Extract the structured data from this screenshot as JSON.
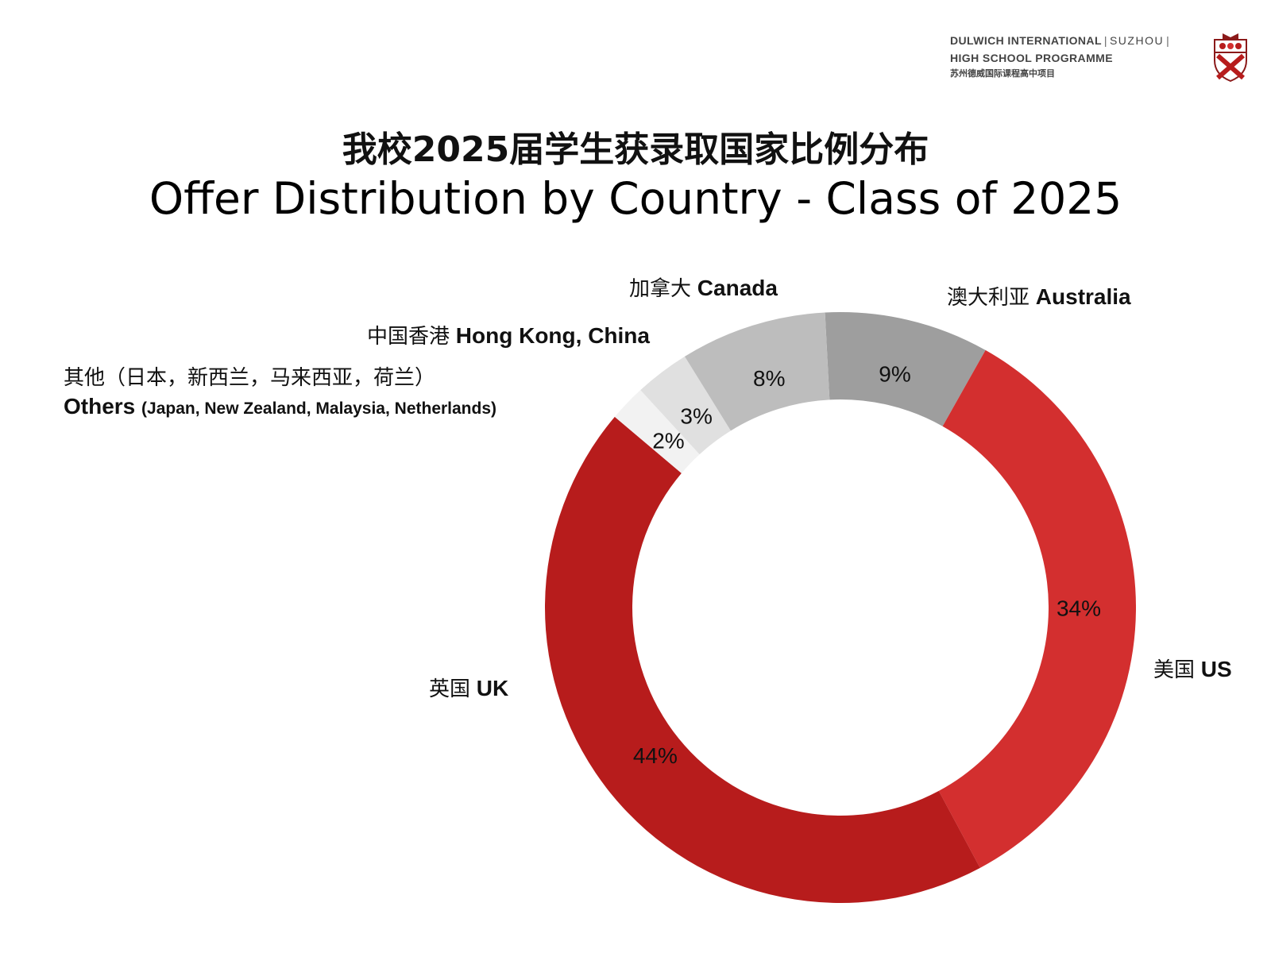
{
  "brand": {
    "line1_name": "DULWICH INTERNATIONAL",
    "line1_city": "SUZHOU",
    "line2": "HIGH SCHOOL PROGRAMME",
    "chinese": "苏州德威国际课程高中项目",
    "separator": "|",
    "crest_icon": "school-crest-icon"
  },
  "chart_data": {
    "type": "pie",
    "title": "我校2025届学生获录取国家比例分布",
    "subtitle": "Offer Distribution by Country - Class of 2025",
    "slices": [
      {
        "cn": "澳大利亚",
        "en": "Australia",
        "value": 9,
        "pct_label": "9%",
        "color": "#9e9e9e"
      },
      {
        "cn": "美国",
        "en": "US",
        "value": 34,
        "pct_label": "34%",
        "color": "#d32f2f"
      },
      {
        "cn": "英国",
        "en": "UK",
        "value": 44,
        "pct_label": "44%",
        "color": "#b71c1c"
      },
      {
        "cn": "其他（日本，新西兰，马来西亚，荷兰）",
        "en": "Others",
        "en_detail": "(Japan, New Zealand, Malaysia, Netherlands)",
        "value": 2,
        "pct_label": "2%",
        "color": "#f2f2f2"
      },
      {
        "cn": "中国香港",
        "en": "Hong Kong, China",
        "value": 3,
        "pct_label": "3%",
        "color": "#e0e0e0"
      },
      {
        "cn": "加拿大",
        "en": "Canada",
        "value": 8,
        "pct_label": "8%",
        "color": "#bdbdbd"
      }
    ]
  }
}
